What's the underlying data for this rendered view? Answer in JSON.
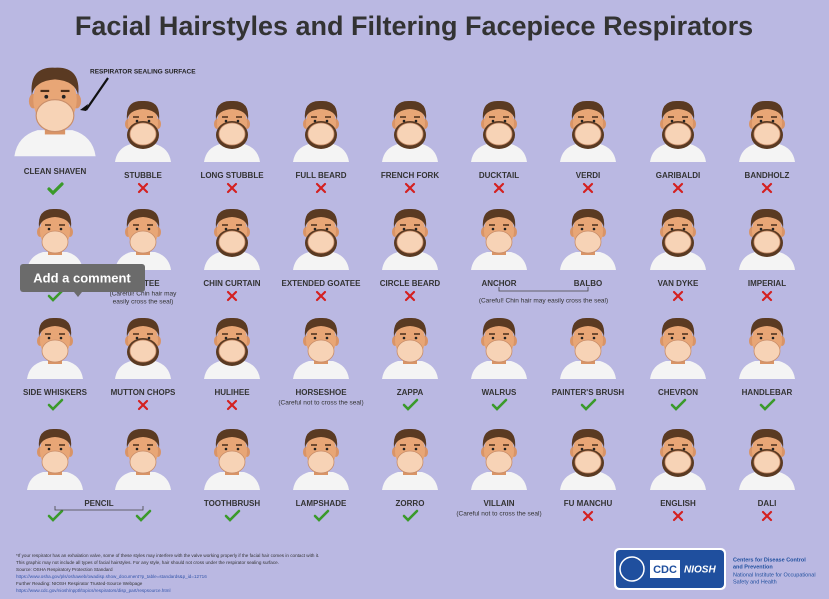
{
  "title": "Facial Hairstyles and Filtering Facepiece Respirators",
  "sealing_label": "RESPIRATOR SEALING SURFACE",
  "comment_tooltip": "Add a comment",
  "rows": [
    [
      {
        "label": "CLEAN SHAVEN",
        "fits": true
      },
      {
        "label": "STUBBLE",
        "fits": false
      },
      {
        "label": "LONG STUBBLE",
        "fits": false
      },
      {
        "label": "FULL BEARD",
        "fits": false
      },
      {
        "label": "FRENCH FORK",
        "fits": false
      },
      {
        "label": "DUCKTAIL",
        "fits": false
      },
      {
        "label": "VERDI",
        "fits": false
      },
      {
        "label": "GARIBALDI",
        "fits": false
      },
      {
        "label": "BANDHOLZ",
        "fits": false
      }
    ],
    [
      {
        "fits": true
      },
      {
        "label": "GOATEE",
        "note_lines": [
          "(Careful! Chin hair may",
          "easily cross the seal)"
        ]
      },
      {
        "label": "CHIN CURTAIN",
        "fits": false
      },
      {
        "label": "EXTENDED GOATEE",
        "fits": false
      },
      {
        "label": "CIRCLE BEARD",
        "fits": false
      },
      {
        "note": "(Careful! Chin hair may easily cross the seal)",
        "styles": [
          {
            "label": "ANCHOR"
          },
          {
            "label": "BALBO"
          }
        ]
      },
      {
        "label": "VAN DYKE",
        "fits": false
      },
      {
        "label": "IMPERIAL",
        "fits": false
      }
    ],
    [
      {
        "label": "SIDE WHISKERS",
        "fits": true
      },
      {
        "label": "MUTTON CHOPS",
        "fits": false
      },
      {
        "label": "HULIHEE",
        "fits": false
      },
      {
        "label": "HORSESHOE",
        "note_lines": [
          "(Careful not to cross the seal)"
        ]
      },
      {
        "label": "ZAPPA",
        "fits": true
      },
      {
        "label": "WALRUS",
        "fits": true
      },
      {
        "label": "PAINTER'S BRUSH",
        "fits": true
      },
      {
        "label": "CHEVRON",
        "fits": true
      },
      {
        "label": "HANDLEBAR",
        "fits": true
      }
    ],
    [
      {
        "label": "PENCIL",
        "styles": [
          {
            "fits": true
          },
          {
            "fits": true
          }
        ]
      },
      {
        "label": "TOOTHBRUSH",
        "fits": true
      },
      {
        "label": "LAMPSHADE",
        "fits": true
      },
      {
        "label": "ZORRO",
        "fits": true
      },
      {
        "label": "VILLAIN",
        "note_lines": [
          "(Careful not to cross the seal)"
        ]
      },
      {
        "label": "FU MANCHU",
        "fits": false
      },
      {
        "label": "ENGLISH",
        "fits": false
      },
      {
        "label": "DALI",
        "fits": false
      }
    ]
  ],
  "footer": [
    "*If your respirator has an exhalation valve, some of these styles may interfere with the valve working properly if the facial hair comes in contact with it.",
    "This graphic may not include all types of facial hairstyles. For any style, hair should not cross under the respirator sealing surface.",
    "Source: OSHA Respiratory Protection Standard",
    "https://www.osha.gov/pls/oshaweb/owadisp.show_document?p_table=standards&p_id=12716",
    "Further Reading: NIOSH Respirator Trusted-Source Webpage",
    "https://www.cdc.gov/niosh/npptl/topics/respirators/disp_part/respsource.html"
  ],
  "logo": {
    "cdc": "CDC",
    "niosh": "NIOSH",
    "agency_lines": [
      "Centers for Disease Control",
      "and Prevention"
    ],
    "institute_lines": [
      "National Institute for Occupational",
      "Safety and Health"
    ]
  }
}
